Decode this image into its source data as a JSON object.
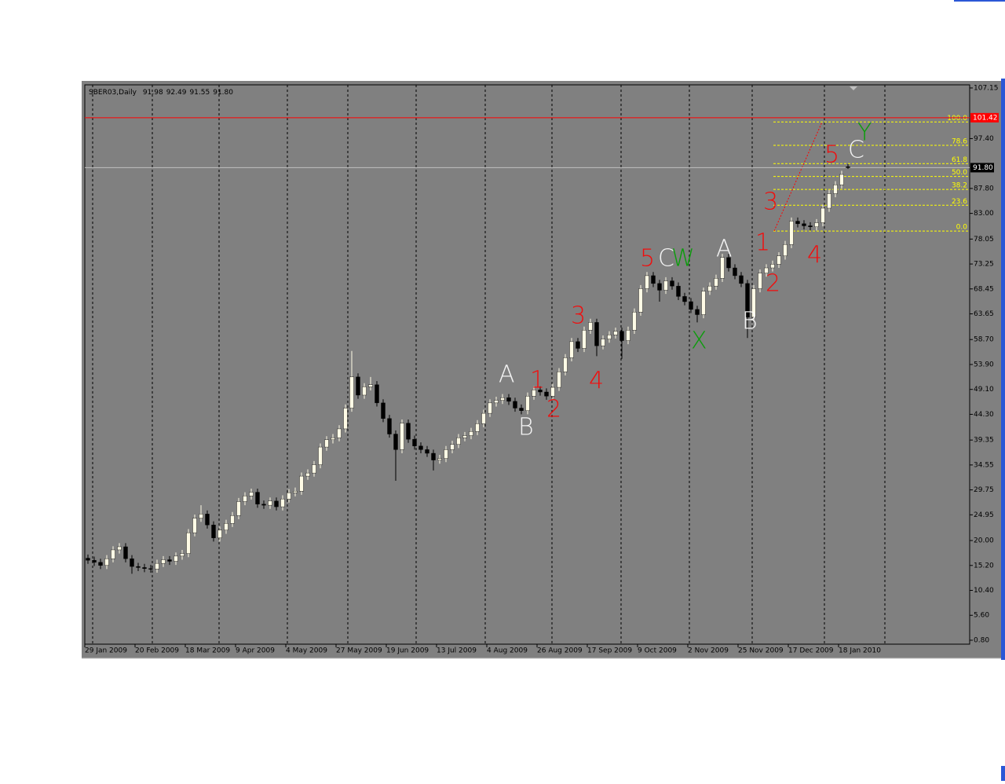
{
  "chart_data": {
    "type": "candlestick",
    "title": "SBER03,Daily",
    "categories": [
      "29 Jan 2009",
      null,
      null,
      null,
      null,
      null,
      null,
      null,
      "20 Feb 2009",
      null,
      null,
      null,
      null,
      null,
      null,
      null,
      "18 Mar 2009",
      null,
      null,
      null,
      null,
      null,
      null,
      null,
      "9 Apr 2009",
      null,
      null,
      null,
      null,
      null,
      null,
      null,
      "4 May 2009",
      null,
      null,
      null,
      null,
      null,
      null,
      null,
      "27 May 2009",
      null,
      null,
      null,
      null,
      null,
      null,
      null,
      "19 Jun 2009",
      null,
      null,
      null,
      null,
      null,
      null,
      null,
      "13 Jul 2009",
      null,
      null,
      null,
      null,
      null,
      null,
      null,
      "4 Aug 2009",
      null,
      null,
      null,
      null,
      null,
      null,
      null,
      "26 Aug 2009",
      null,
      null,
      null,
      null,
      null,
      null,
      null,
      "17 Sep 2009",
      null,
      null,
      null,
      null,
      null,
      null,
      null,
      "9 Oct 2009",
      null,
      null,
      null,
      null,
      null,
      null,
      null,
      "2 Nov 2009",
      null,
      null,
      null,
      null,
      null,
      null,
      null,
      "25 Nov 2009",
      null,
      null,
      null,
      null,
      null,
      null,
      null,
      "17 Dec 2009",
      null,
      null,
      null,
      null,
      null,
      null,
      null,
      "18 Jan 2010",
      null
    ],
    "open": [
      16.6,
      16.2,
      15.8,
      15.2,
      16.5,
      18.2,
      18.8,
      16.5,
      15.0,
      14.8,
      14.6,
      14.5,
      15.6,
      16.3,
      16.0,
      17.0,
      17.5,
      21.5,
      24.3,
      25.1,
      23.0,
      20.5,
      22.0,
      23.3,
      24.8,
      27.5,
      28.6,
      29.3,
      27.0,
      26.8,
      27.6,
      26.5,
      28.0,
      29.2,
      29.5,
      32.4,
      33.0,
      34.6,
      38.0,
      39.4,
      39.8,
      41.5,
      45.5,
      51.5,
      48.0,
      49.6,
      50.0,
      46.5,
      43.5,
      40.5,
      37.5,
      42.6,
      39.5,
      38.2,
      37.5,
      36.8,
      35.5,
      35.8,
      37.5,
      38.5,
      39.8,
      40.2,
      41.0,
      42.5,
      44.5,
      46.5,
      47.0,
      47.5,
      46.8,
      45.5,
      45.0,
      47.8,
      49.0,
      48.6,
      47.8,
      49.5,
      52.5,
      55.2,
      58.3,
      57.0,
      60.5,
      62.0,
      57.5,
      58.8,
      59.6,
      60.3,
      58.5,
      60.5,
      64.0,
      68.5,
      71.0,
      69.5,
      68.2,
      70.0,
      69.0,
      67.0,
      66.0,
      64.5,
      63.5,
      68.0,
      69.0,
      70.5,
      74.5,
      72.5,
      71.0,
      69.5,
      63.0,
      68.5,
      71.5,
      72.5,
      73.2,
      74.8,
      77.0,
      81.5,
      81.0,
      80.6,
      80.4,
      81.2,
      84.0,
      86.8,
      88.5,
      91.98
    ],
    "high": [
      17.3,
      16.9,
      16.5,
      17.2,
      18.9,
      19.5,
      19.5,
      17.2,
      15.7,
      15.5,
      15.3,
      16.3,
      17.0,
      17.0,
      17.7,
      18.2,
      22.2,
      25.0,
      26.8,
      25.8,
      23.7,
      22.7,
      24.0,
      25.5,
      28.2,
      29.3,
      30.0,
      30.0,
      27.7,
      28.3,
      28.3,
      28.7,
      29.9,
      30.2,
      33.1,
      33.7,
      35.3,
      38.7,
      40.1,
      40.5,
      42.2,
      46.2,
      56.5,
      52.2,
      50.3,
      51.5,
      50.7,
      47.2,
      44.2,
      41.2,
      43.3,
      43.3,
      40.2,
      38.9,
      38.2,
      37.5,
      36.5,
      38.2,
      39.2,
      40.5,
      40.9,
      41.7,
      43.2,
      45.2,
      47.2,
      47.7,
      48.2,
      48.2,
      47.5,
      46.2,
      48.5,
      49.7,
      49.7,
      49.3,
      50.2,
      53.2,
      55.9,
      59.0,
      59.0,
      61.2,
      62.7,
      62.7,
      59.5,
      60.3,
      61.0,
      61.0,
      61.2,
      64.7,
      69.2,
      71.7,
      71.7,
      70.2,
      70.7,
      70.7,
      69.7,
      67.7,
      66.7,
      65.2,
      68.7,
      69.7,
      71.2,
      75.2,
      75.2,
      73.2,
      71.7,
      70.2,
      69.2,
      72.2,
      73.2,
      73.9,
      75.5,
      77.7,
      82.2,
      82.2,
      81.7,
      81.3,
      81.9,
      84.7,
      87.5,
      89.2,
      91.2,
      92.49
    ],
    "low": [
      15.5,
      15.1,
      14.5,
      14.5,
      15.8,
      17.5,
      15.8,
      13.6,
      14.1,
      13.9,
      13.8,
      13.8,
      14.9,
      15.3,
      15.3,
      16.3,
      16.8,
      20.8,
      23.6,
      22.3,
      19.8,
      19.8,
      21.3,
      22.6,
      24.1,
      26.8,
      27.9,
      26.3,
      26.1,
      26.1,
      25.8,
      25.8,
      27.3,
      28.5,
      28.8,
      31.7,
      32.3,
      33.9,
      37.3,
      38.7,
      39.1,
      40.8,
      44.8,
      47.3,
      47.3,
      48.9,
      45.8,
      42.8,
      39.8,
      31.5,
      36.8,
      38.8,
      37.5,
      36.8,
      36.1,
      33.5,
      34.8,
      35.1,
      36.8,
      37.8,
      39.1,
      39.5,
      40.3,
      41.8,
      43.8,
      45.8,
      46.3,
      46.1,
      44.8,
      44.3,
      44.3,
      47.1,
      47.9,
      47.1,
      47.1,
      48.8,
      51.8,
      54.5,
      56.3,
      56.3,
      59.8,
      55.5,
      56.8,
      58.1,
      58.9,
      55.0,
      57.8,
      59.8,
      63.3,
      67.8,
      68.8,
      66.0,
      67.5,
      68.3,
      66.3,
      65.3,
      63.8,
      62.0,
      62.8,
      67.3,
      68.3,
      69.8,
      71.8,
      70.3,
      68.8,
      59.0,
      62.3,
      67.8,
      70.8,
      71.8,
      72.5,
      74.1,
      76.3,
      80.3,
      79.9,
      79.7,
      79.7,
      80.5,
      83.3,
      86.1,
      87.8,
      91.55
    ],
    "close": [
      16.2,
      15.8,
      15.2,
      16.5,
      18.2,
      18.8,
      16.5,
      15.0,
      14.8,
      14.6,
      14.5,
      15.6,
      16.3,
      16.0,
      17.0,
      17.5,
      21.5,
      24.3,
      25.1,
      23.0,
      20.5,
      22.0,
      23.3,
      24.8,
      27.5,
      28.6,
      29.3,
      27.0,
      26.8,
      27.6,
      26.5,
      28.0,
      29.2,
      29.5,
      32.4,
      33.0,
      34.6,
      38.0,
      39.4,
      39.8,
      41.5,
      45.5,
      51.5,
      48.0,
      49.6,
      50.0,
      46.5,
      43.5,
      40.5,
      37.5,
      42.6,
      39.5,
      38.2,
      37.5,
      36.8,
      35.5,
      35.8,
      37.5,
      38.5,
      39.8,
      40.2,
      41.0,
      42.5,
      44.5,
      46.5,
      47.0,
      47.5,
      46.8,
      45.5,
      45.0,
      47.8,
      49.0,
      48.6,
      47.8,
      49.5,
      52.5,
      55.2,
      58.3,
      57.0,
      60.5,
      62.0,
      57.5,
      58.8,
      59.6,
      60.3,
      58.5,
      60.5,
      64.0,
      68.5,
      71.0,
      69.5,
      68.2,
      70.0,
      69.0,
      67.0,
      66.0,
      64.5,
      63.5,
      68.0,
      69.0,
      70.5,
      74.5,
      72.5,
      71.0,
      69.5,
      63.0,
      68.5,
      71.5,
      72.5,
      73.2,
      74.8,
      77.0,
      81.5,
      81.0,
      80.6,
      80.4,
      81.2,
      84.0,
      86.8,
      88.5,
      90.5,
      91.8
    ],
    "up_color": "#fffbe6",
    "down_color": "#000000",
    "ylim": [
      0.04,
      107.75
    ],
    "yticks": [
      107.15,
      {
        "value": 97.4,
        "label": "97.40"
      },
      {
        "value": 87.8,
        "label": "87.80"
      },
      {
        "value": 83,
        "label": "83.00"
      },
      78.05,
      73.25,
      68.45,
      63.65,
      {
        "value": 58.7,
        "label": "58.70"
      },
      {
        "value": 53.9,
        "label": "53.90"
      },
      {
        "value": 49.1,
        "label": "49.10"
      },
      {
        "value": 44.3,
        "label": "44.30"
      },
      39.35,
      34.55,
      29.75,
      24.95,
      {
        "value": 20,
        "label": "20.00"
      },
      {
        "value": 15.2,
        "label": "15.20"
      },
      {
        "value": 10.4,
        "label": "10.40"
      },
      {
        "value": 5.6,
        "label": "5.60"
      },
      {
        "value": 0.8,
        "label": "0.80"
      }
    ],
    "alert_line": {
      "value": 101.42,
      "color": "#ff0000"
    },
    "current_price": {
      "value": 91.8,
      "label": "91.80"
    },
    "fibonacci": [
      {
        "label": "0.0",
        "price": 79.6
      },
      {
        "label": "23.6",
        "price": 84.56
      },
      {
        "label": "38.2",
        "price": 87.62
      },
      {
        "label": "50.0",
        "price": 90.1
      },
      {
        "label": "61.8",
        "price": 92.58
      },
      {
        "label": "78.6",
        "price": 96.1
      },
      {
        "label": "100.0",
        "price": 100.6
      }
    ],
    "annotations": [
      {
        "text": "A",
        "color": "#ffffff"
      },
      {
        "text": "B",
        "color": "#ffffff"
      },
      {
        "text": "1",
        "color": "#ff0000"
      },
      {
        "text": "2",
        "color": "#ff0000"
      },
      {
        "text": "3",
        "color": "#ff0000"
      },
      {
        "text": "4",
        "color": "#ff0000"
      },
      {
        "text": "5",
        "color": "#ff0000"
      },
      {
        "text": "C",
        "color": "#ffffff"
      },
      {
        "text": "W",
        "color": "#00a000"
      },
      {
        "text": "X",
        "color": "#00a000"
      },
      {
        "text": "A",
        "color": "#ffffff"
      },
      {
        "text": "B",
        "color": "#ffffff"
      },
      {
        "text": "1",
        "color": "#ff0000"
      },
      {
        "text": "2",
        "color": "#ff0000"
      },
      {
        "text": "3",
        "color": "#ff0000"
      },
      {
        "text": "4",
        "color": "#ff0000"
      },
      {
        "text": "5",
        "color": "#ff0000"
      },
      {
        "text": "C",
        "color": "#ffffff"
      },
      {
        "text": "Y",
        "color": "#00a000"
      }
    ]
  }
}
